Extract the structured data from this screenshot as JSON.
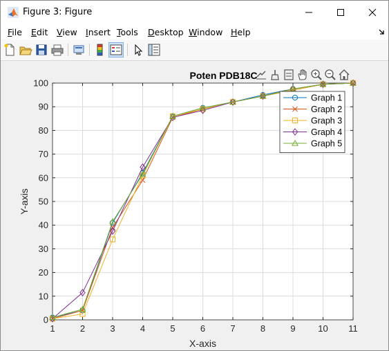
{
  "window": {
    "title": "Figure 3: Figure"
  },
  "menu": {
    "items": [
      "File",
      "Edit",
      "View",
      "Insert",
      "Tools",
      "Desktop",
      "Window",
      "Help"
    ]
  },
  "toolbar": {
    "icons": [
      "new-figure-icon",
      "open-file-icon",
      "save-icon",
      "print-icon",
      "print-preview-icon",
      "colorbar-icon",
      "legend-icon",
      "pointer-icon",
      "property-inspector-icon"
    ]
  },
  "axes_toolbar": {
    "icons": [
      "export-icon",
      "brush-icon",
      "data-tips-icon",
      "pan-icon",
      "zoom-in-icon",
      "zoom-out-icon",
      "home-icon"
    ]
  },
  "chart_data": {
    "type": "line",
    "title": "Poten PDB18C",
    "xlabel": "X-axis",
    "ylabel": "Y-axis",
    "xlim": [
      1,
      11
    ],
    "ylim": [
      0,
      100
    ],
    "xticks": [
      1,
      2,
      3,
      4,
      5,
      6,
      7,
      8,
      9,
      10,
      11
    ],
    "yticks": [
      0,
      10,
      20,
      30,
      40,
      50,
      60,
      70,
      80,
      90,
      100
    ],
    "grid": true,
    "legend_position": "top-right",
    "x": [
      1,
      2,
      3,
      4,
      5,
      6,
      7,
      8,
      9,
      10,
      11
    ],
    "series": [
      {
        "name": "Graph 1",
        "color": "#0072bd",
        "marker": "circle",
        "values": [
          1,
          4,
          41,
          62,
          86,
          89.5,
          92,
          95,
          97.5,
          99.5,
          100
        ]
      },
      {
        "name": "Graph 2",
        "color": "#d95319",
        "marker": "x",
        "values": [
          0.5,
          4,
          39,
          59,
          85.5,
          89,
          92,
          94.5,
          97,
          99.5,
          100
        ]
      },
      {
        "name": "Graph 3",
        "color": "#edb120",
        "marker": "square",
        "values": [
          0.5,
          2.5,
          34,
          61,
          86,
          89,
          92,
          94.5,
          97,
          99.5,
          100
        ]
      },
      {
        "name": "Graph 4",
        "color": "#7e2f8e",
        "marker": "diamond",
        "values": [
          0.5,
          11.5,
          37.5,
          64.5,
          85.5,
          88.5,
          92,
          94.5,
          97.5,
          99.5,
          100
        ]
      },
      {
        "name": "Graph 5",
        "color": "#77ac30",
        "marker": "triangle",
        "values": [
          1,
          4.5,
          41.5,
          61.5,
          86,
          89.5,
          92,
          94.5,
          97.5,
          99.5,
          100
        ]
      }
    ]
  }
}
